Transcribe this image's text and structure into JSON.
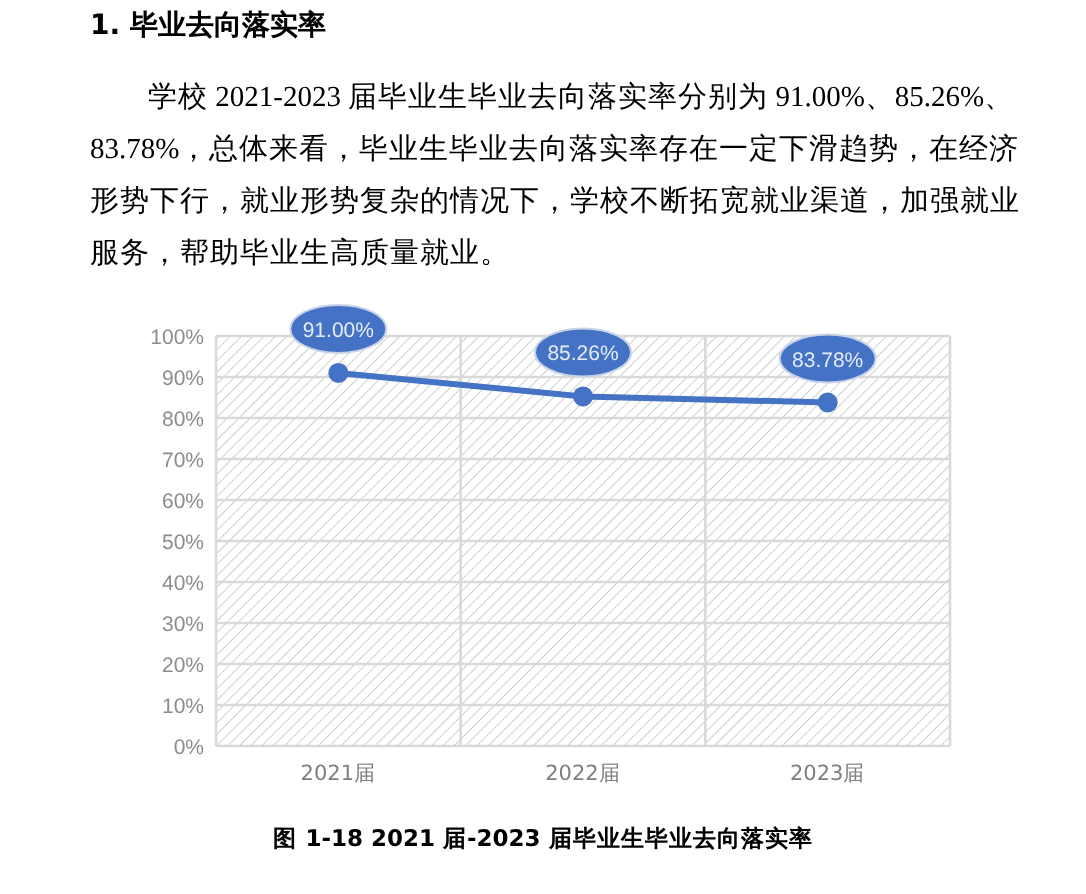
{
  "chart_data": {
    "type": "line",
    "title": "1. 毕业去向落实率",
    "annotations": [
      "学校 2021-2023 届毕业生毕业去向落实率分别为 91.00%、85.26%、83.78%，总体来看，毕业生毕业去向落实率存在一定下滑趋势，在经济形势下行，就业形势复杂的情况下，学校不断拓宽就业渠道，加强就业服务，帮助毕业生高质量就业。",
      "图 1-18  2021 届-2023 届毕业生毕业去向落实率"
    ],
    "categories": [
      "2021届",
      "2022届",
      "2023届"
    ],
    "series": [
      {
        "color": "#4472c4",
        "values": [
          91.0,
          85.26,
          83.78
        ],
        "value_labels": [
          "91.00%",
          "85.26%",
          "83.78%"
        ]
      }
    ],
    "ylim": [
      0,
      100
    ],
    "yticks": [
      {
        "value": 0,
        "label": "0%"
      },
      {
        "value": 10,
        "label": "10%"
      },
      {
        "value": 20,
        "label": "20%"
      },
      {
        "value": 30,
        "label": "30%"
      },
      {
        "value": 40,
        "label": "40%"
      },
      {
        "value": 50,
        "label": "50%"
      },
      {
        "value": 60,
        "label": "60%"
      },
      {
        "value": 70,
        "label": "70%"
      },
      {
        "value": 80,
        "label": "80%"
      },
      {
        "value": 90,
        "label": "90%"
      },
      {
        "value": 100,
        "label": "100%"
      }
    ],
    "grid": true,
    "marker": "circle"
  }
}
